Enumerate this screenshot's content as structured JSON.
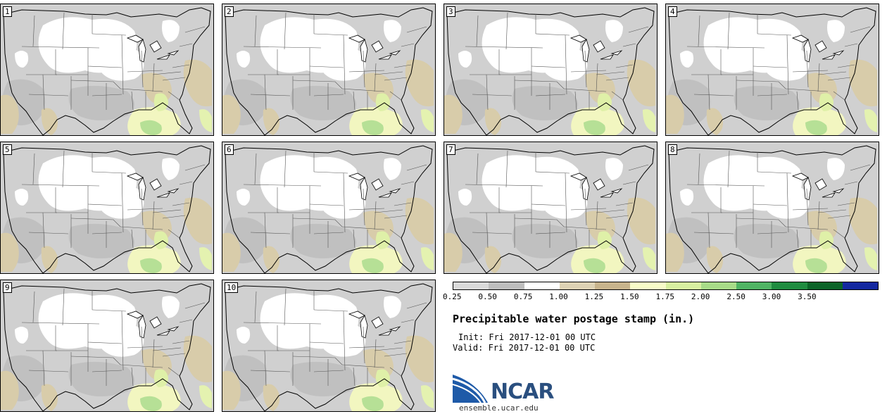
{
  "panels": [
    {
      "label": "1"
    },
    {
      "label": "2"
    },
    {
      "label": "3"
    },
    {
      "label": "4"
    },
    {
      "label": "5"
    },
    {
      "label": "6"
    },
    {
      "label": "7"
    },
    {
      "label": "8"
    },
    {
      "label": "9"
    },
    {
      "label": "10"
    }
  ],
  "colorbar": {
    "ticks": [
      "0.25",
      "0.50",
      "0.75",
      "1.00",
      "1.25",
      "1.50",
      "1.75",
      "2.00",
      "2.50",
      "3.00",
      "3.50"
    ],
    "colors": [
      "#dadada",
      "#bebebe",
      "#ffffff",
      "#ded2b4",
      "#c8b48c",
      "#f8fcc8",
      "#d8f0a0",
      "#a8dc88",
      "#50b464",
      "#208c40",
      "#0c6428",
      "#1428a0"
    ]
  },
  "title": "Precipitable water postage stamp (in.)",
  "init": "Init: Fri 2017-12-01 00 UTC",
  "valid": "Valid: Fri 2017-12-01 00 UTC",
  "logo": {
    "name": "NCAR",
    "url": "ensemble.ucar.edu"
  }
}
